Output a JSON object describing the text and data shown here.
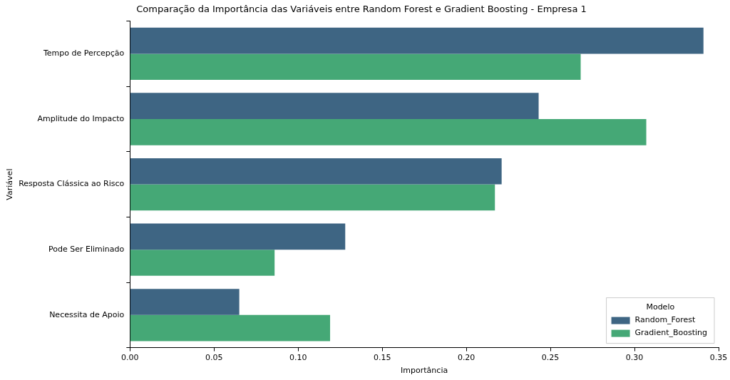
{
  "chart_data": {
    "type": "bar",
    "orientation": "horizontal",
    "title": "Comparação da Importância das Variáveis entre Random Forest e Gradient Boosting - Empresa 1",
    "xlabel": "Importância",
    "ylabel": "Variável",
    "legend_title": "Modelo",
    "legend": "bottom right",
    "grid": false,
    "categories": [
      "Tempo de Percepção",
      "Amplitude do Impacto",
      "Resposta Clássica ao Risco",
      "Pode Ser Eliminado",
      "Necessita de Apoio"
    ],
    "series": [
      {
        "name": "Random_Forest",
        "color": "#3e6583",
        "values": [
          0.341,
          0.243,
          0.221,
          0.128,
          0.065
        ]
      },
      {
        "name": "Gradient_Boosting",
        "color": "#45a876",
        "values": [
          0.268,
          0.307,
          0.217,
          0.086,
          0.119
        ]
      }
    ],
    "xlim": [
      0,
      0.35
    ],
    "xticks": [
      {
        "value": 0,
        "label": "0.00"
      },
      0.05,
      {
        "value": 0.1,
        "label": "0.10"
      },
      0.15,
      {
        "value": 0.2,
        "label": "0.20"
      },
      0.25,
      {
        "value": 0.3,
        "label": "0.30"
      },
      0.35
    ]
  }
}
